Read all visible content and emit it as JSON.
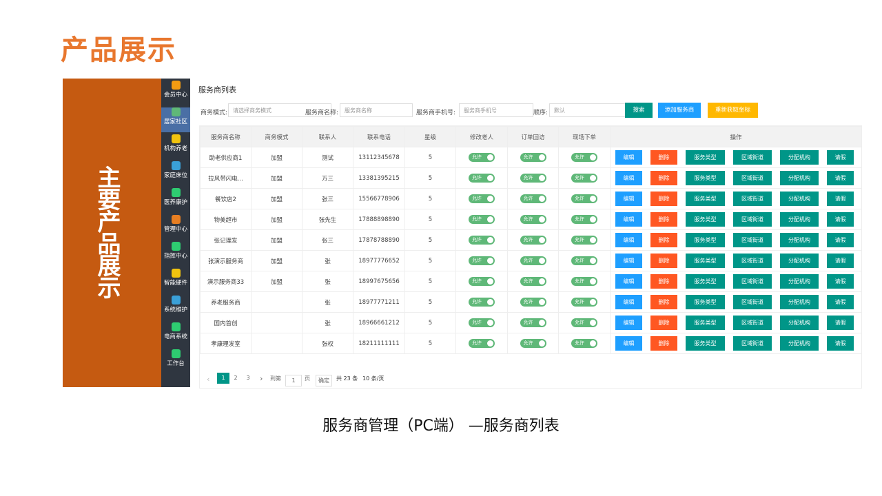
{
  "slide_title": "产品展示",
  "side_banner": "主要产品展示",
  "sidebar": [
    "会员中心",
    "居家社区",
    "机构养老",
    "家庭床位",
    "医养康护",
    "管理中心",
    "指挥中心",
    "智能硬件",
    "系统维护",
    "电商系统",
    "工作台"
  ],
  "page_title": "服务商列表",
  "filters": [
    {
      "label": "商务模式:",
      "placeholder": "请选择商务模式"
    },
    {
      "label": "服务商名称:",
      "placeholder": "服务商名称"
    },
    {
      "label": "服务商手机号:",
      "placeholder": "服务商手机号"
    },
    {
      "label": "顺序:",
      "placeholder": "默认"
    }
  ],
  "buttons": [
    "搜索",
    "添加服务商",
    "重新获取坐标"
  ],
  "table": {
    "columns": [
      "服务商名称",
      "商务模式",
      "联系人",
      "联系电话",
      "星级",
      "修改老人",
      "订单回访",
      "现场下单",
      "操作"
    ],
    "toggle_label": "允许",
    "actions": [
      "编辑",
      "删除",
      "服务类型",
      "区域街道",
      "分配机构",
      "请假"
    ],
    "rows": [
      [
        "助老供应商1",
        "加盟",
        "测试",
        "13112345678",
        5
      ],
      [
        "拉风带闪电...",
        "加盟",
        "万三",
        "13381395215",
        5
      ],
      [
        "餐饮店2",
        "加盟",
        "张三",
        "15566778906",
        5
      ],
      [
        "物美超市",
        "加盟",
        "张先生",
        "17888898890",
        5
      ],
      [
        "张记理发",
        "加盟",
        "张三",
        "17878788890",
        5
      ],
      [
        "张演示服务商",
        "加盟",
        "张",
        "18977776652",
        5
      ],
      [
        "演示服务商33",
        "加盟",
        "张",
        "18997675656",
        5
      ],
      [
        "养老服务商",
        null,
        "张",
        "18977771211",
        5
      ],
      [
        "国内首创",
        null,
        "张",
        "18966661212",
        5
      ],
      [
        "孝康理发室",
        null,
        "张权",
        "18211111111",
        5
      ]
    ]
  },
  "pagination": {
    "pages": [
      1,
      2,
      3
    ],
    "goto_label": "到第",
    "goto_value": "1",
    "page_unit": "页",
    "confirm": "确定",
    "total": "共 23 条",
    "page_size": "10 条/页"
  },
  "caption": "服务商管理（PC端） —服务商列表"
}
